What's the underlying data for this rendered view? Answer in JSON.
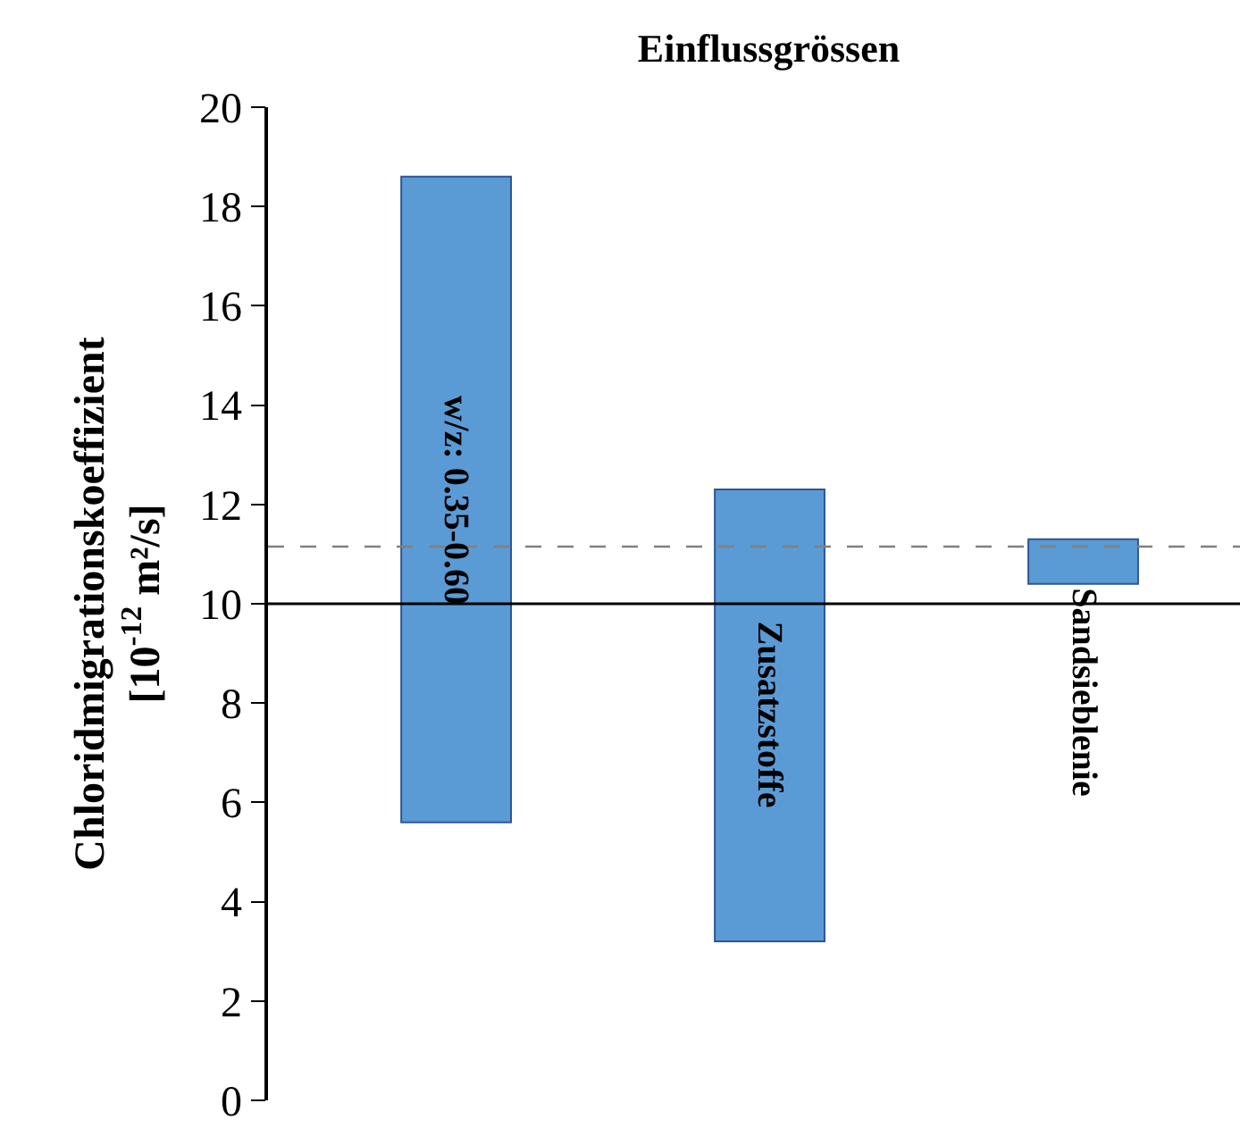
{
  "chart_data": {
    "type": "bar",
    "title": "Einflussgrössen",
    "ylabel": "Chloridmigrationskoeffizient\n[10$^{-12}$ m²/s]",
    "categories": [
      "w/z: 0.35-0.60",
      "Zusatzstoffe",
      "Sandsieblenie"
    ],
    "base": [
      5.6,
      3.2,
      10.4
    ],
    "values": [
      13.0,
      9.1,
      0.9
    ],
    "color": "#5b9bd5",
    "ylim": [
      0,
      20
    ],
    "yticks": [
      0,
      2,
      4,
      6,
      8,
      10,
      12,
      14,
      16,
      18,
      20
    ],
    "tick_labels": "y",
    "ref_lines": [
      {
        "axis": "y",
        "value": 10,
        "color": "#000000",
        "line_style": "solid"
      },
      {
        "axis": "y",
        "value": 11.15,
        "color": "#808080",
        "line_style": "dashed"
      }
    ]
  }
}
